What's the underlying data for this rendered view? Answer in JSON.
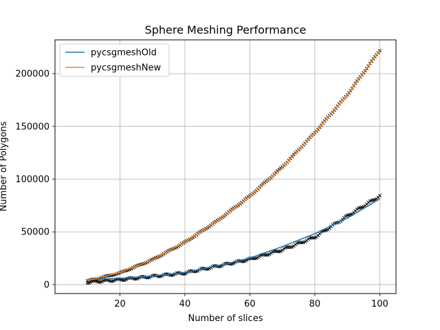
{
  "chart_data": {
    "type": "line",
    "title": "Sphere Meshing Performance",
    "xlabel": "Number of slices",
    "ylabel": "Number of Polygons",
    "xlim": [
      0,
      105
    ],
    "ylim": [
      -8500,
      232000
    ],
    "xticks": [
      20,
      40,
      60,
      80,
      100
    ],
    "yticks": [
      0,
      50000,
      100000,
      150000,
      200000
    ],
    "grid": true,
    "legend_position": "top-left",
    "series": [
      {
        "name": "pycsgmeshOld",
        "color": "#1f77b4",
        "x": [
          10,
          20,
          30,
          40,
          50,
          60,
          70,
          80,
          90,
          100
        ],
        "values": [
          4800,
          6000,
          8100,
          11500,
          17700,
          25200,
          36000,
          48300,
          63000,
          81200
        ]
      },
      {
        "name": "pycsgmeshNew",
        "color": "#ff7f0e",
        "x": [
          10,
          20,
          30,
          40,
          50,
          60,
          70,
          80,
          90,
          100
        ],
        "values": [
          3800,
          11400,
          23400,
          40200,
          60500,
          84000,
          111000,
          144000,
          180000,
          222000
        ]
      }
    ],
    "markers": {
      "color": "#000000",
      "symbol": "x",
      "x_range": [
        10,
        100
      ],
      "series_values": [
        [
          2300,
          4600,
          7800,
          11000,
          17500,
          24000,
          33000,
          45000,
          65000,
          84000
        ],
        [
          3400,
          11000,
          23500,
          40000,
          60500,
          84000,
          111500,
          144000,
          180000,
          222000
        ]
      ]
    }
  }
}
